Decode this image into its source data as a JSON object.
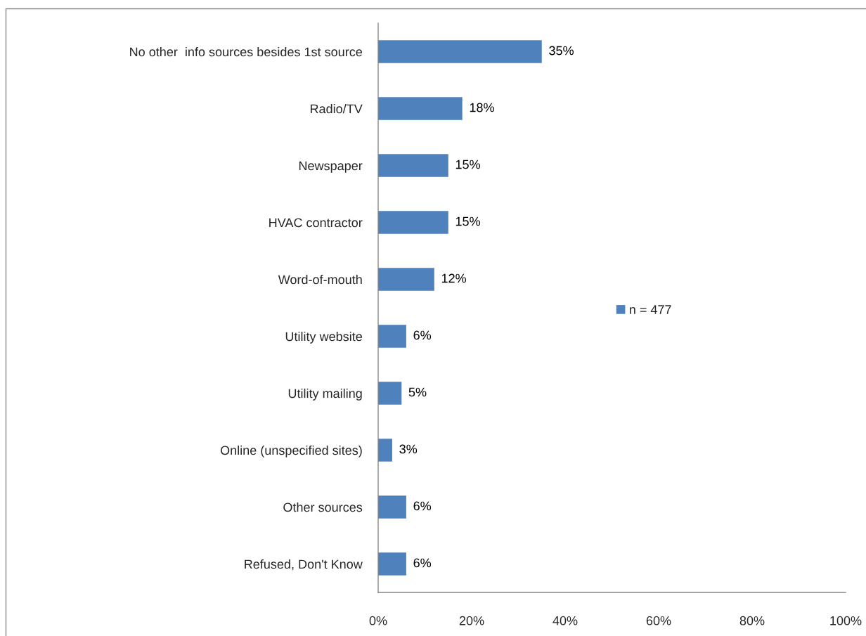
{
  "chart_data": {
    "type": "bar",
    "orientation": "horizontal",
    "categories": [
      "No other  info sources besides 1st source",
      "Radio/TV",
      "Newspaper",
      "HVAC contractor",
      "Word-of-mouth",
      "Utility website",
      "Utility mailing",
      "Online (unspecified sites)",
      "Other sources",
      "Refused, Don't Know"
    ],
    "series": [
      {
        "name": "n = 477",
        "color": "#4f81bd",
        "values": [
          35,
          18,
          15,
          15,
          12,
          6,
          5,
          3,
          6,
          6
        ],
        "value_labels": [
          "35%",
          "18%",
          "15%",
          "15%",
          "12%",
          "6%",
          "5%",
          "3%",
          "6%",
          "6%"
        ]
      }
    ],
    "xlim": [
      0,
      100
    ],
    "xticks": [
      {
        "value": 0,
        "label": "0%"
      },
      {
        "value": 20,
        "label": "20%"
      },
      {
        "value": 40,
        "label": "40%"
      },
      {
        "value": 60,
        "label": "60%"
      },
      {
        "value": 80,
        "label": "80%"
      },
      {
        "value": 100,
        "label": "100%"
      }
    ],
    "grid": false,
    "legend": "right"
  }
}
